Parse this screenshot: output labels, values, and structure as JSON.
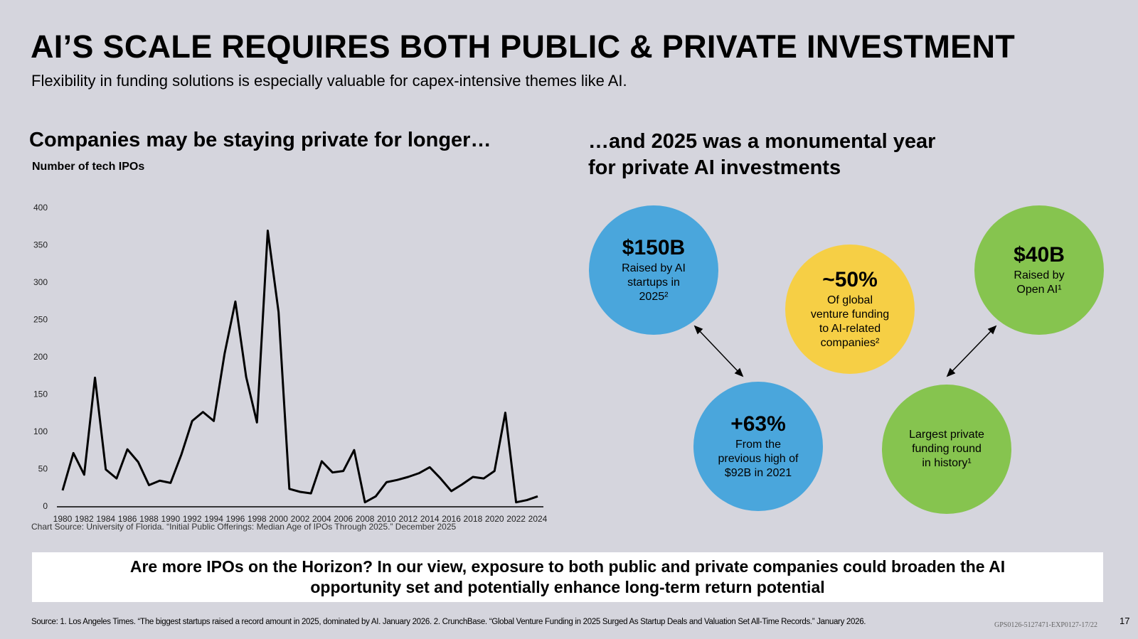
{
  "header": {
    "title": "AI’S SCALE REQUIRES BOTH PUBLIC & PRIVATE INVESTMENT",
    "subtitle": "Flexibility in funding solutions is especially valuable for capex-intensive themes like AI."
  },
  "chart_data": {
    "type": "line",
    "title": "Companies may be staying private for longer…",
    "ylabel": "Number of tech IPOs",
    "x": [
      1980,
      1981,
      1982,
      1983,
      1984,
      1985,
      1986,
      1987,
      1988,
      1989,
      1990,
      1991,
      1992,
      1993,
      1994,
      1995,
      1996,
      1997,
      1998,
      1999,
      2000,
      2001,
      2002,
      2003,
      2004,
      2005,
      2006,
      2007,
      2008,
      2009,
      2010,
      2011,
      2012,
      2013,
      2014,
      2015,
      2016,
      2017,
      2018,
      2019,
      2020,
      2021,
      2022,
      2023,
      2024
    ],
    "series": [
      {
        "name": "Number of tech IPOs",
        "color": "#000000",
        "values": [
          22,
          72,
          43,
          173,
          50,
          38,
          77,
          60,
          29,
          35,
          32,
          70,
          115,
          127,
          115,
          205,
          275,
          174,
          113,
          370,
          261,
          24,
          20,
          18,
          61,
          46,
          48,
          76,
          6,
          14,
          33,
          36,
          40,
          45,
          53,
          38,
          21,
          30,
          40,
          38,
          48,
          126,
          6,
          9,
          14
        ]
      }
    ],
    "xlim": [
      1980,
      2024
    ],
    "xticks": [
      1980,
      1982,
      1984,
      1986,
      1988,
      1990,
      1992,
      1994,
      1996,
      1998,
      2000,
      2002,
      2004,
      2006,
      2008,
      2010,
      2012,
      2014,
      2016,
      2018,
      2020,
      2022,
      2024
    ],
    "ylim": [
      0,
      400
    ],
    "yticks": [
      0,
      50,
      100,
      150,
      200,
      250,
      300,
      350,
      400
    ],
    "grid": false,
    "source": "Chart Source: University of Florida. “Initial Public Offerings: Median Age of IPOs Through 2025.” December 2025"
  },
  "right_panel": {
    "title_lines": [
      "…and 2025 was a monumental year",
      "for private AI investments"
    ],
    "highlights": [
      {
        "stat": "$150B",
        "lines": [
          "Raised by AI",
          "startups in",
          "2025²"
        ]
      },
      {
        "stat": "~50%",
        "lines": [
          "Of global",
          "venture funding",
          "to AI-related",
          "companies²"
        ]
      },
      {
        "stat": "$40B",
        "lines": [
          "Raised by",
          "Open AI¹"
        ]
      },
      {
        "stat": "+63%",
        "lines": [
          "From the",
          "previous high of",
          "$92B in 2021"
        ]
      },
      {
        "lines": [
          "Largest private",
          "funding round",
          "in history¹"
        ]
      }
    ]
  },
  "callout": {
    "lines": [
      "Are more IPOs on the Horizon? In our view, exposure to both public and private companies could broaden the AI",
      "opportunity set and potentially enhance long-term return potential"
    ]
  },
  "footer": {
    "source": "Source: 1. Los Angeles Times. “The biggest startups raised a record amount in 2025, dominated by AI. January 2026. 2. CrunchBase. “Global Venture Funding in 2025 Surged As Startup Deals and Valuation Set All-Time Records.” January 2026.",
    "code": "GPS0126-5127471-EXP0127-17/22",
    "page": "17"
  }
}
